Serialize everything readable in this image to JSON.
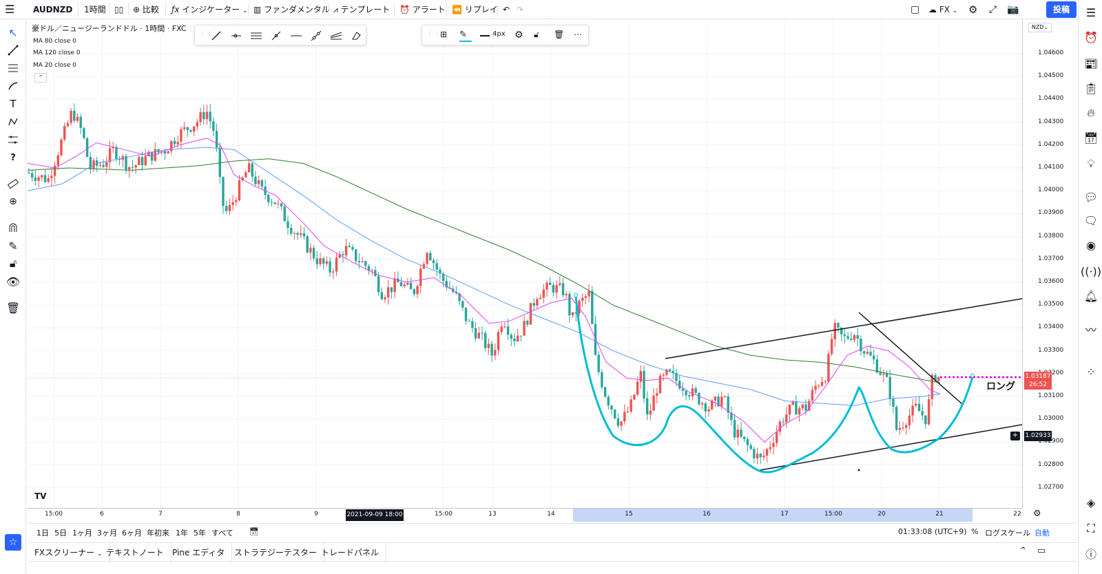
{
  "topbar": {
    "symbol": "AUDNZD",
    "interval": "1時間",
    "compare": "比較",
    "indicators": "インジケーター",
    "fundamentals": "ファンダメンタル",
    "templates": "テンプレート",
    "alert": "アラート",
    "replay": "リプレイ",
    "layout": "FX",
    "post": "投稿"
  },
  "chart": {
    "title": "豪ドル／ニュージーランドドル · 1時間 · FXC",
    "legend": [
      "MA 80 close 0",
      "MA 120 close 0",
      "MA 20 close 0"
    ],
    "currency": "NZD",
    "annotation": "ロング",
    "current_price": "1.03187",
    "countdown": "26:52",
    "crosshair_price": "1.02933",
    "crosshair_date": "2021-09-09   18:00",
    "colors": {
      "up": "#ef5350",
      "down": "#26a69a",
      "ma20": "#e040fb",
      "ma80": "#5b9bff",
      "ma120": "#2e7d32",
      "pattern": "#00bcd4",
      "target": "#d500f9"
    }
  },
  "price_axis": [
    "1.04600",
    "1.04500",
    "1.04400",
    "1.04300",
    "1.04200",
    "1.04100",
    "1.04000",
    "1.03900",
    "1.03800",
    "1.03700",
    "1.03600",
    "1.03500",
    "1.03400",
    "1.03300",
    "1.03200",
    "1.03100",
    "1.03000",
    "1.02900",
    "1.02800",
    "1.02700"
  ],
  "time_axis": [
    "15:00",
    "6",
    "7",
    "8",
    "9",
    "15:00",
    "13",
    "14",
    "15",
    "16",
    "17",
    "15:00",
    "20",
    "21",
    "22"
  ],
  "bottombar": {
    "ranges": [
      "1日",
      "5日",
      "1ヶ月",
      "3ヶ月",
      "6ヶ月",
      "年初来",
      "1年",
      "5年",
      "すべて"
    ],
    "clock": "01:33:08 (UTC+9)",
    "percent": "%",
    "log": "ログスケール",
    "auto": "自動"
  },
  "panel_tabs": [
    "FXスクリーナー",
    "テキストノート",
    "Pine エディタ",
    "ストラテジーテスター",
    "トレードパネル"
  ],
  "float_toolbar2": {
    "width_label": "4px"
  }
}
